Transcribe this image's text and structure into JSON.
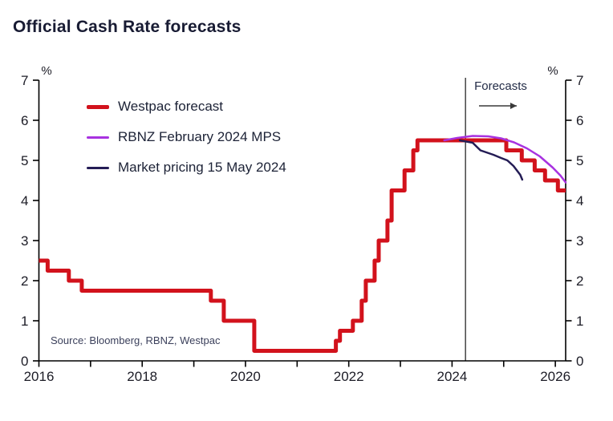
{
  "title": "Official Cash Rate forecasts",
  "source": "Source: Bloomberg, RBNZ, Westpac",
  "annotation": {
    "text": "Forecasts"
  },
  "axis_unit_left": "%",
  "axis_unit_right": "%",
  "legend": {
    "items": [
      {
        "label": "Westpac forecast"
      },
      {
        "label": "RBNZ February 2024 MPS"
      },
      {
        "label": "Market pricing 15 May 2024"
      }
    ]
  },
  "chart_data": {
    "type": "line",
    "title": "Official Cash Rate forecasts",
    "xlabel": "",
    "ylabel": "%",
    "xlim": [
      2016,
      2026.2
    ],
    "ylim": [
      0,
      7
    ],
    "grid": false,
    "legend_position": "top-left",
    "y_ticks": [
      0,
      1,
      2,
      3,
      4,
      5,
      6,
      7
    ],
    "x_ticks": [
      {
        "v": 2016,
        "label": "2016"
      },
      {
        "v": 2017,
        "label": ""
      },
      {
        "v": 2018,
        "label": "2018"
      },
      {
        "v": 2019,
        "label": ""
      },
      {
        "v": 2020,
        "label": "2020"
      },
      {
        "v": 2021,
        "label": ""
      },
      {
        "v": 2022,
        "label": "2022"
      },
      {
        "v": 2023,
        "label": ""
      },
      {
        "v": 2024,
        "label": "2024"
      },
      {
        "v": 2025,
        "label": ""
      },
      {
        "v": 2026,
        "label": "2026"
      }
    ],
    "forecast_line_x": 2024.26,
    "series": [
      {
        "name": "Westpac forecast",
        "color": "#d2121c",
        "type": "step",
        "width": 5,
        "points": [
          [
            2016.0,
            2.5
          ],
          [
            2016.17,
            2.25
          ],
          [
            2016.58,
            2.0
          ],
          [
            2016.83,
            1.75
          ],
          [
            2019.33,
            1.5
          ],
          [
            2019.58,
            1.0
          ],
          [
            2020.17,
            0.25
          ],
          [
            2021.75,
            0.5
          ],
          [
            2021.83,
            0.75
          ],
          [
            2022.08,
            1.0
          ],
          [
            2022.25,
            1.5
          ],
          [
            2022.33,
            2.0
          ],
          [
            2022.5,
            2.5
          ],
          [
            2022.58,
            3.0
          ],
          [
            2022.75,
            3.5
          ],
          [
            2022.83,
            4.25
          ],
          [
            2023.08,
            4.75
          ],
          [
            2023.25,
            5.25
          ],
          [
            2023.33,
            5.5
          ],
          [
            2025.05,
            5.25
          ],
          [
            2025.35,
            5.0
          ],
          [
            2025.6,
            4.75
          ],
          [
            2025.8,
            4.5
          ],
          [
            2026.05,
            4.25
          ]
        ],
        "end_x": 2026.2
      },
      {
        "name": "RBNZ February 2024 MPS",
        "color": "#a832e0",
        "type": "line",
        "width": 2.5,
        "points": [
          [
            2023.85,
            5.5
          ],
          [
            2024.1,
            5.56
          ],
          [
            2024.4,
            5.61
          ],
          [
            2024.7,
            5.6
          ],
          [
            2024.95,
            5.55
          ],
          [
            2025.2,
            5.45
          ],
          [
            2025.45,
            5.3
          ],
          [
            2025.7,
            5.1
          ],
          [
            2025.95,
            4.82
          ],
          [
            2026.1,
            4.62
          ],
          [
            2026.2,
            4.45
          ]
        ]
      },
      {
        "name": "Market pricing 15 May 2024",
        "color": "#241c55",
        "type": "line",
        "width": 2.5,
        "points": [
          [
            2024.15,
            5.5
          ],
          [
            2024.4,
            5.44
          ],
          [
            2024.55,
            5.25
          ],
          [
            2024.8,
            5.14
          ],
          [
            2024.95,
            5.06
          ],
          [
            2025.07,
            5.0
          ],
          [
            2025.19,
            4.86
          ],
          [
            2025.32,
            4.64
          ],
          [
            2025.36,
            4.52
          ]
        ]
      }
    ]
  }
}
